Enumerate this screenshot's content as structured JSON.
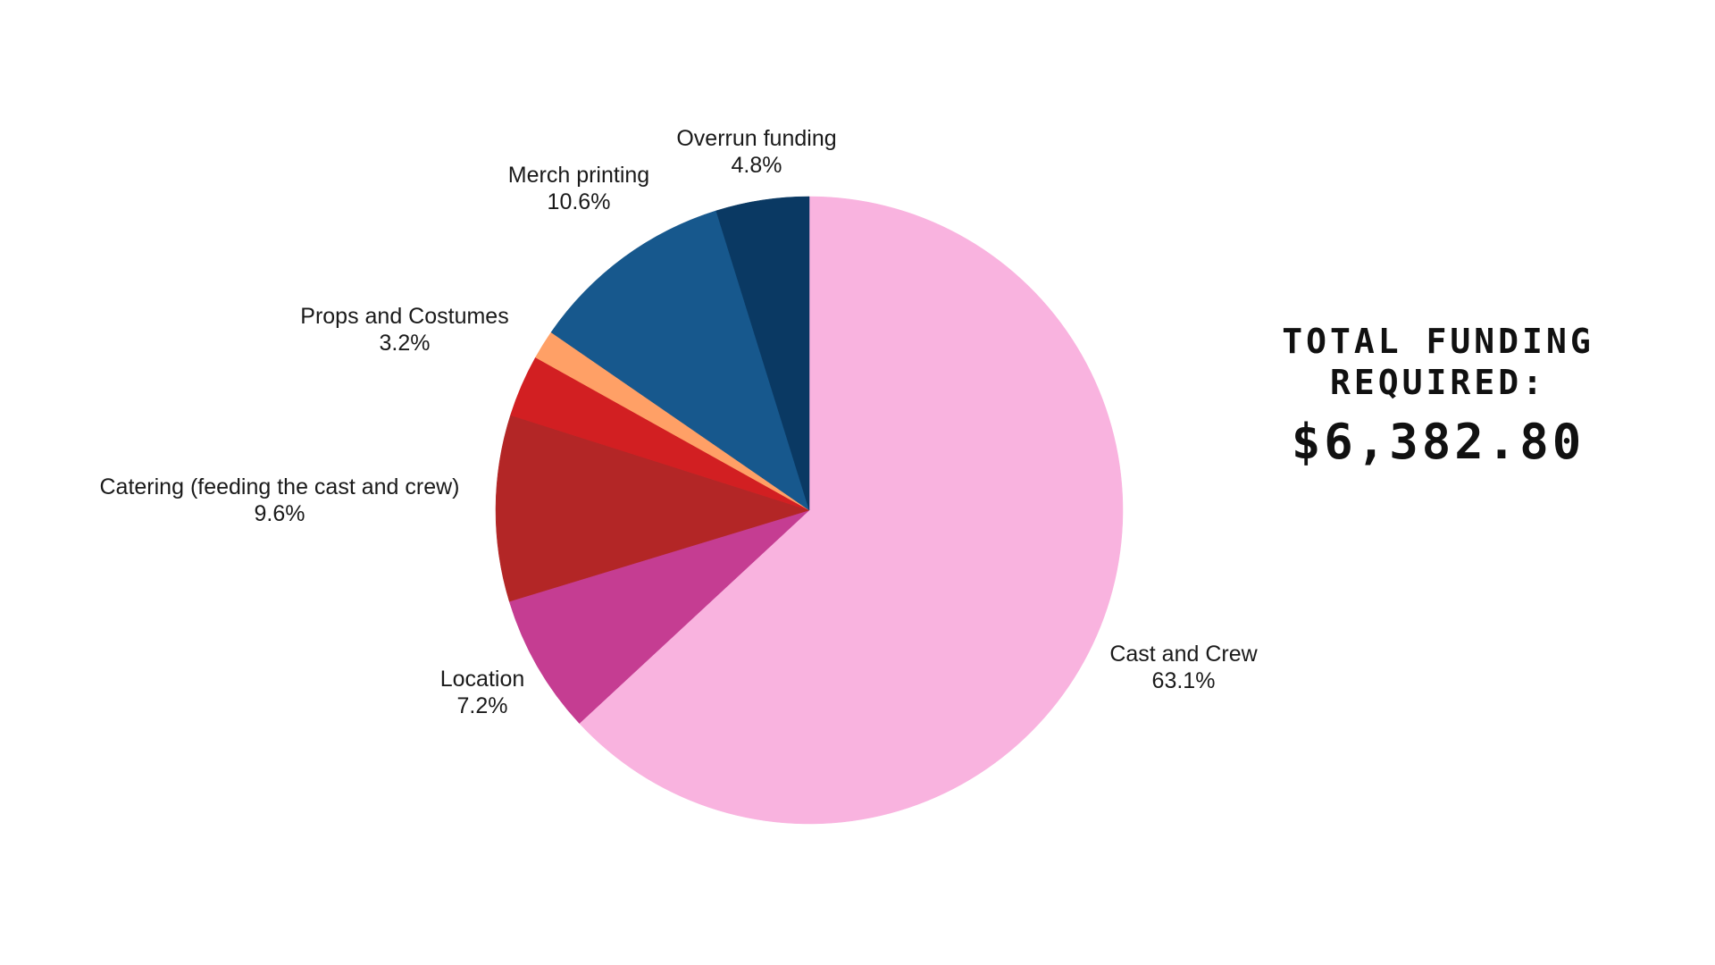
{
  "chart_data": {
    "type": "pie",
    "title": "",
    "start": "top",
    "direction": "clockwise",
    "slices": [
      {
        "label": "Cast and Crew",
        "value": 63.1,
        "value_label": "63.1%",
        "color": "#F9B3DF"
      },
      {
        "label": "Location",
        "value": 7.2,
        "value_label": "7.2%",
        "color": "#C53D92"
      },
      {
        "label": "Catering (feeding the cast and crew)",
        "value": 9.6,
        "value_label": "9.6%",
        "color": "#B32626"
      },
      {
        "label": "Props and Costumes",
        "value": 3.2,
        "value_label": "3.2%",
        "color": "#D21F22"
      },
      {
        "label": "",
        "value": 1.5,
        "value_label": "",
        "color": "#FFA066"
      },
      {
        "label": "Merch printing",
        "value": 10.6,
        "value_label": "10.6%",
        "color": "#17588D"
      },
      {
        "label": "Overrun funding",
        "value": 4.8,
        "value_label": "4.8%",
        "color": "#0A3963"
      }
    ]
  },
  "total": {
    "label": "TOTAL FUNDING REQUIRED:",
    "value": "$6,382.80"
  }
}
